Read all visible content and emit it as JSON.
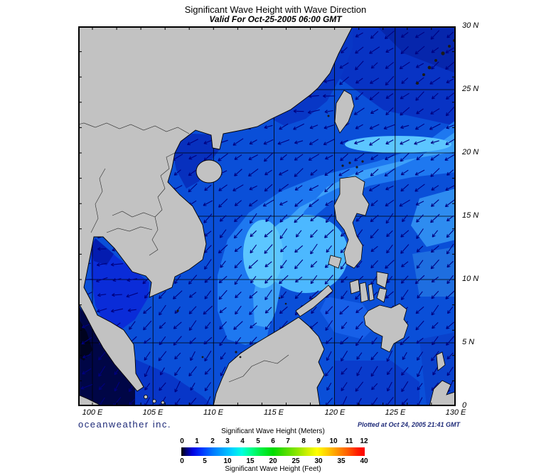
{
  "title": "Significant Wave Height with Wave Direction",
  "subtitle": "Valid For Oct-25-2005 06:00 GMT",
  "credit": "oceanweather inc.",
  "plotted": "Plotted at Oct 24, 2005 21:41 GMT",
  "map": {
    "lon_labels": [
      "100 E",
      "105 E",
      "110 E",
      "115 E",
      "120 E",
      "125 E",
      "130 E"
    ],
    "lat_labels": [
      "30 N",
      "25 N",
      "20 N",
      "15 N",
      "10 N",
      "5 N",
      "0"
    ]
  },
  "legend": {
    "meters_title": "Significant Wave Height (Meters)",
    "feet_title": "Significant Wave Height (Feet)",
    "meters_ticks": [
      "0",
      "1",
      "2",
      "3",
      "4",
      "5",
      "6",
      "7",
      "8",
      "9",
      "10",
      "11",
      "12"
    ],
    "feet_ticks": [
      "0",
      "5",
      "10",
      "15",
      "20",
      "25",
      "30",
      "35",
      "40"
    ]
  },
  "colors": {
    "land": "#c2c2c2",
    "ocean_base": "#0a4fd8",
    "arrow": "#000080",
    "navy_text": "#1e2a78"
  },
  "chart_data": {
    "type": "heatmap",
    "title": "Significant Wave Height with Wave Direction",
    "valid_time": "Oct-25-2005 06:00 GMT",
    "region": {
      "lon_range": [
        "100 E",
        "130 E"
      ],
      "lat_range": [
        "0",
        "30 N"
      ]
    },
    "grid_spacing_degrees": 5,
    "colorbar": {
      "units": [
        "Meters",
        "Feet"
      ],
      "meters_range": [
        0,
        12
      ],
      "feet_range": [
        0,
        40
      ],
      "scale_colors": [
        "black",
        "blue",
        "cyan",
        "green",
        "yellow",
        "orange",
        "red"
      ]
    },
    "depicted_values_meters": {
      "central_south_china_sea": 3,
      "luzon_strait_band": 3,
      "gulf_of_tonkin": 1.5,
      "gulf_of_thailand": 1,
      "strait_of_malacca_andaman": 0.25,
      "northeast_pacific_area": 1.5,
      "east_of_philippines": 2
    },
    "wave_direction": "arrows point westward in the north, southwestward over the central and southern South China Sea"
  }
}
